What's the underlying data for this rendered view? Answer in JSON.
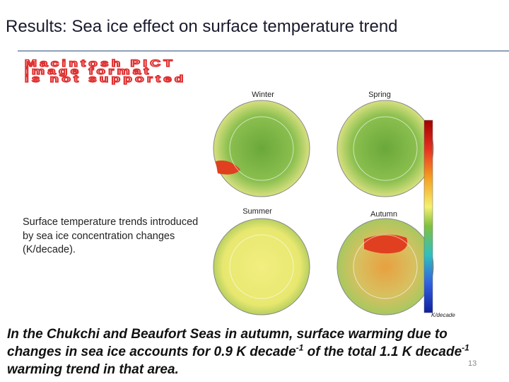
{
  "header": {
    "title": "Results: Sea ice effect on surface temperature trend"
  },
  "placeholder": {
    "lines": [
      "Macintosh PICT",
      "image format",
      "is not supported"
    ]
  },
  "figure": {
    "panels": [
      "Winter",
      "Spring",
      "Summer",
      "Autumn"
    ],
    "colorbar_unit": "K/decade"
  },
  "caption": "Surface temperature trends introduced by sea ice concentration changes (K/decade).",
  "conclusion": {
    "text1": "In the Chukchi and Beaufort Seas in autumn, surface warming due to changes in sea ice accounts for 0.9 K decade",
    "sup1": "-1",
    "text2": " of the total 1.1 K decade",
    "sup2": "-1",
    "text3": " warming trend in that area."
  },
  "slide_number": "13"
}
